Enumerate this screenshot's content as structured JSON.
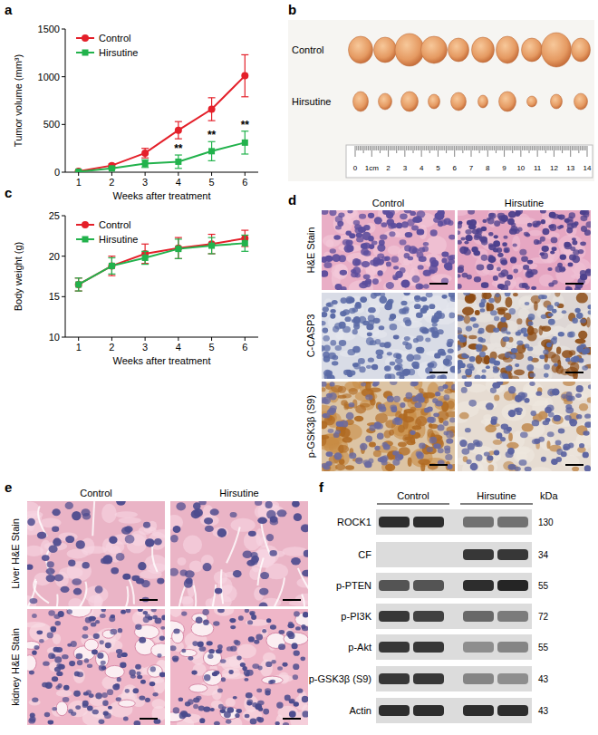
{
  "chart_data": [
    {
      "type": "line",
      "x_label": "Weeks after treatment",
      "y_label": "Tumor volume (mm³)",
      "x": [
        1,
        2,
        3,
        4,
        5,
        6
      ],
      "xlim": [
        0.6,
        6.4
      ],
      "xticks": [
        1,
        2,
        3,
        4,
        5,
        6
      ],
      "ylim": [
        0,
        1500
      ],
      "yticks": [
        0,
        500,
        1000,
        1500
      ],
      "grid": false,
      "legend": "upper left",
      "series": [
        {
          "name": "Control",
          "color": "#e4202a",
          "marker": "circle",
          "line_style": "solid",
          "values": [
            10,
            70,
            200,
            440,
            660,
            1010
          ],
          "errors": [
            5,
            15,
            50,
            90,
            120,
            220
          ]
        },
        {
          "name": "Hirsutine",
          "color": "#22b24c",
          "marker": "square",
          "line_style": "solid",
          "values": [
            5,
            40,
            90,
            110,
            220,
            310
          ],
          "errors": [
            3,
            10,
            40,
            70,
            100,
            120
          ]
        }
      ],
      "annotations": [
        {
          "x": 4,
          "text": "**",
          "series": "Hirsutine"
        },
        {
          "x": 5,
          "text": "**",
          "series": "Hirsutine"
        },
        {
          "x": 6,
          "text": "**",
          "series": "Hirsutine"
        }
      ]
    },
    {
      "type": "line",
      "x_label": "Weeks after treatment",
      "y_label": "Body weight (g)",
      "x": [
        1,
        2,
        3,
        4,
        5,
        6
      ],
      "xlim": [
        0.6,
        6.4
      ],
      "xticks": [
        1,
        2,
        3,
        4,
        5,
        6
      ],
      "ylim": [
        10,
        25
      ],
      "yticks": [
        10,
        15,
        20,
        25
      ],
      "grid": false,
      "legend": "upper left",
      "series": [
        {
          "name": "Control",
          "color": "#e4202a",
          "marker": "circle",
          "line_style": "solid",
          "values": [
            16.5,
            18.8,
            20.3,
            21,
            21.5,
            22.2
          ],
          "errors": [
            0.8,
            1.2,
            1.2,
            1.3,
            1.2,
            1.0
          ]
        },
        {
          "name": "Hirsutine",
          "color": "#22b24c",
          "marker": "square",
          "line_style": "solid",
          "values": [
            16.5,
            18.8,
            19.8,
            20.9,
            21.3,
            21.6
          ],
          "errors": [
            0.8,
            1.0,
            0.8,
            1.2,
            1.0,
            1.0
          ]
        }
      ]
    }
  ],
  "panel_labels": [
    "a",
    "b",
    "c",
    "d",
    "e",
    "f"
  ],
  "tumor_photo": {
    "row_labels": [
      "Control",
      "Hirsutine"
    ],
    "ruler_labels": [
      "0",
      "1cm",
      "2",
      "3",
      "4",
      "5",
      "6",
      "7",
      "8",
      "9",
      "10",
      "11",
      "12",
      "13",
      "14"
    ]
  },
  "ihc": {
    "columns": [
      "Control",
      "Hirsutine"
    ],
    "rows": [
      "H&E Stain",
      "C-CASP3",
      "p-GSK3β (S9)"
    ]
  },
  "organ_histology": {
    "columns": [
      "Control",
      "Hirsutine"
    ],
    "rows": [
      "Liver H&E Stain",
      "kidney H&E Stain"
    ]
  },
  "western_blot": {
    "groups": [
      "Control",
      "Hirsutine"
    ],
    "unit": "kDa",
    "rows": [
      {
        "label": "ROCK1",
        "kda": 130
      },
      {
        "label": "CF",
        "kda": 34
      },
      {
        "label": "p-PTEN",
        "kda": 55
      },
      {
        "label": "p-PI3K",
        "kda": 72
      },
      {
        "label": "p-Akt",
        "kda": 55
      },
      {
        "label": "p-GSK3β (S9)",
        "kda": 43
      },
      {
        "label": "Actin",
        "kda": 43
      }
    ]
  }
}
